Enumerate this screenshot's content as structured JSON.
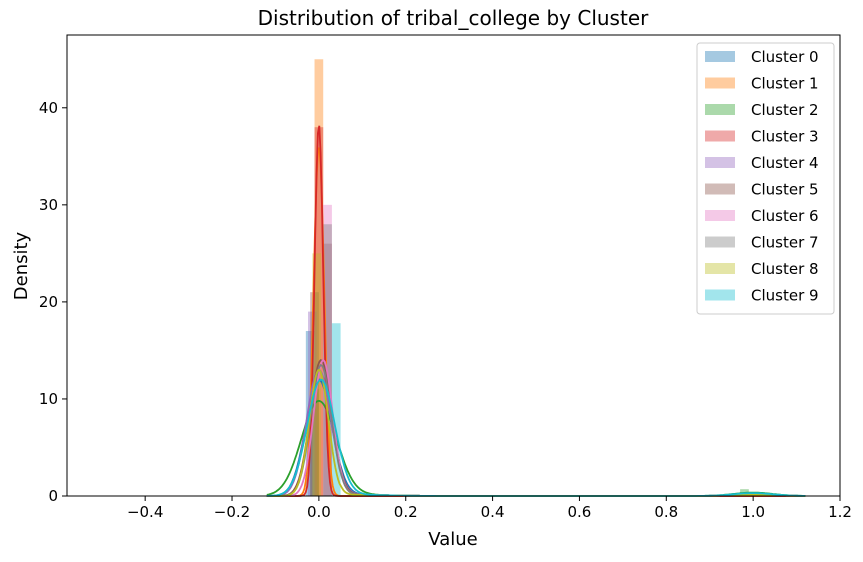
{
  "chart_data": {
    "type": "histogram+kde",
    "title": "Distribution of tribal_college by Cluster",
    "xlabel": "Value",
    "ylabel": "Density",
    "xlim": [
      -0.58,
      1.2
    ],
    "ylim": [
      0,
      47.5
    ],
    "x_ticks": [
      -0.4,
      -0.2,
      0.0,
      0.2,
      0.4,
      0.6,
      0.8,
      1.0,
      1.2
    ],
    "x_tick_labels": [
      "−0.4",
      "−0.2",
      "0.0",
      "0.2",
      "0.4",
      "0.6",
      "0.8",
      "1.0",
      "1.2"
    ],
    "y_ticks": [
      0,
      10,
      20,
      30,
      40
    ],
    "y_tick_labels": [
      "0",
      "10",
      "20",
      "30",
      "40"
    ],
    "grid": false,
    "legend_position": "top-right",
    "bin_width": 0.02,
    "series": [
      {
        "name": "Cluster 0",
        "color": "#1f77b4",
        "hist": [
          {
            "x": -0.02,
            "h": 17
          },
          {
            "x": 0.98,
            "h": 0.3
          }
        ],
        "kde": {
          "mean": 0.0,
          "sd": 0.03,
          "peak": 12,
          "tail_x": 1.0,
          "tail_peak": 0.2
        }
      },
      {
        "name": "Cluster 1",
        "color": "#ff7f0e",
        "hist": [
          {
            "x": 0.0,
            "h": 45
          }
        ],
        "kde": {
          "mean": 0.0,
          "sd": 0.012,
          "peak": 36,
          "tail_x": 1.0,
          "tail_peak": 0.0
        }
      },
      {
        "name": "Cluster 2",
        "color": "#2ca02c",
        "hist": [
          {
            "x": -0.01,
            "h": 11
          },
          {
            "x": 0.98,
            "h": 0.7
          }
        ],
        "kde": {
          "mean": 0.0,
          "sd": 0.04,
          "peak": 9.8,
          "tail_x": 1.0,
          "tail_peak": 0.35
        }
      },
      {
        "name": "Cluster 3",
        "color": "#d62728",
        "hist": [
          {
            "x": 0.0,
            "h": 38
          }
        ],
        "kde": {
          "mean": 0.0,
          "sd": 0.01,
          "peak": 38.3,
          "tail_x": 1.0,
          "tail_peak": 0.0
        }
      },
      {
        "name": "Cluster 4",
        "color": "#9467bd",
        "hist": [
          {
            "x": -0.015,
            "h": 19
          },
          {
            "x": 0.98,
            "h": 0.2
          }
        ],
        "kde": {
          "mean": 0.0,
          "sd": 0.028,
          "peak": 13,
          "tail_x": 1.0,
          "tail_peak": 0.15
        }
      },
      {
        "name": "Cluster 5",
        "color": "#8c564b",
        "hist": [
          {
            "x": 0.02,
            "h": 26
          },
          {
            "x": -0.01,
            "h": 21
          },
          {
            "x": 0.98,
            "h": 0.3
          }
        ],
        "kde": {
          "mean": 0.005,
          "sd": 0.025,
          "peak": 14,
          "tail_x": 1.0,
          "tail_peak": 0.2
        }
      },
      {
        "name": "Cluster 6",
        "color": "#e377c2",
        "hist": [
          {
            "x": 0.02,
            "h": 30
          },
          {
            "x": 0.98,
            "h": 0.2
          }
        ],
        "kde": {
          "mean": 0.01,
          "sd": 0.022,
          "peak": 14,
          "tail_x": 1.0,
          "tail_peak": 0.15
        }
      },
      {
        "name": "Cluster 7",
        "color": "#7f7f7f",
        "hist": [
          {
            "x": 0.02,
            "h": 28
          },
          {
            "x": 0.98,
            "h": 0.2
          }
        ],
        "kde": {
          "mean": 0.005,
          "sd": 0.024,
          "peak": 13.5,
          "tail_x": 1.0,
          "tail_peak": 0.15
        }
      },
      {
        "name": "Cluster 8",
        "color": "#bcbd22",
        "hist": [
          {
            "x": -0.005,
            "h": 25
          },
          {
            "x": 0.98,
            "h": 0.2
          }
        ],
        "kde": {
          "mean": 0.0,
          "sd": 0.022,
          "peak": 13,
          "tail_x": 1.0,
          "tail_peak": 0.15
        }
      },
      {
        "name": "Cluster 9",
        "color": "#17becf",
        "hist": [
          {
            "x": 0.04,
            "h": 17.8
          },
          {
            "x": 0.98,
            "h": 0.4
          }
        ],
        "kde": {
          "mean": 0.005,
          "sd": 0.032,
          "peak": 12,
          "tail_x": 1.0,
          "tail_peak": 0.3
        }
      }
    ]
  }
}
